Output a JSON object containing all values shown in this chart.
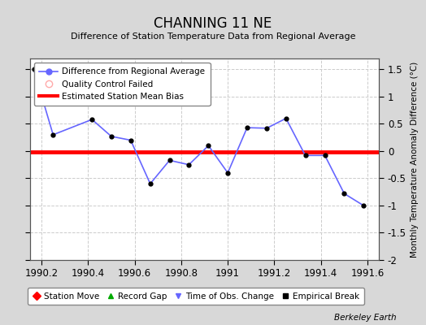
{
  "title": "CHANNING 11 NE",
  "subtitle": "Difference of Station Temperature Data from Regional Average",
  "ylabel_right": "Monthly Temperature Anomaly Difference (°C)",
  "xlim": [
    1990.15,
    1991.65
  ],
  "ylim": [
    -2.0,
    1.7
  ],
  "yticks": [
    -2.0,
    -1.5,
    -1.0,
    -0.5,
    0.0,
    0.5,
    1.0,
    1.5
  ],
  "ytick_labels": [
    "-2",
    "-1.5",
    "-1",
    "-0.5",
    "0",
    "0.5",
    "1",
    "1.5"
  ],
  "xticks": [
    1990.2,
    1990.4,
    1990.6,
    1990.8,
    1991.0,
    1991.2,
    1991.4,
    1991.6
  ],
  "xtick_labels": [
    "1990.2",
    "1990.4",
    "1990.6",
    "1990.8",
    "1991",
    "1991.2",
    "1991.4",
    "1991.6"
  ],
  "x_data": [
    1990.167,
    1990.25,
    1990.417,
    1990.5,
    1990.583,
    1990.667,
    1990.75,
    1990.833,
    1990.917,
    1991.0,
    1991.083,
    1991.167,
    1991.25,
    1991.333,
    1991.417,
    1991.5,
    1991.583
  ],
  "y_data": [
    1.5,
    0.3,
    0.58,
    0.27,
    0.2,
    -0.6,
    -0.17,
    -0.25,
    0.1,
    -0.4,
    0.43,
    0.42,
    0.6,
    -0.08,
    -0.08,
    -0.78,
    -1.0
  ],
  "bias_value": -0.02,
  "line_color": "#6666ff",
  "marker_color": "#000000",
  "bias_color": "#ff0000",
  "fig_background_color": "#d8d8d8",
  "plot_background_color": "#ffffff",
  "grid_color": "#cccccc",
  "watermark": "Berkeley Earth"
}
